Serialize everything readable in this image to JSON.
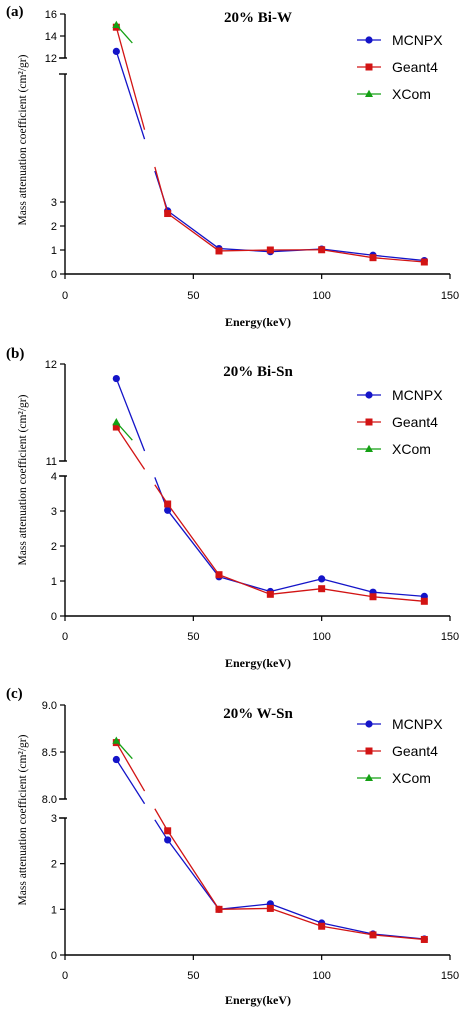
{
  "chart_data": [
    {
      "panel_letter": "(a)",
      "type": "line",
      "title": "20% Bi-W",
      "xlabel": "Energy(keV)",
      "ylabel": "Mass attenuation coefficient (cm²/gr)",
      "xlim": [
        0,
        150
      ],
      "x_ticks": [
        "0",
        "50",
        "100",
        "150"
      ],
      "y_axis_break": true,
      "ylim_lower": [
        0,
        3
      ],
      "ylim_upper": [
        12,
        16
      ],
      "y_ticks_lower": [
        "0",
        "1",
        "2",
        "3"
      ],
      "y_ticks_upper": [
        "12",
        "14",
        "16"
      ],
      "legend_position": "top-right",
      "x": [
        20,
        40,
        60,
        80,
        100,
        120,
        140
      ],
      "series": [
        {
          "name": "MCNPX",
          "color": "#1414c8",
          "marker": "circle",
          "values": [
            12.6,
            2.63,
            1.06,
            0.93,
            1.04,
            0.78,
            0.56
          ]
        },
        {
          "name": "Geant4",
          "color": "#d21414",
          "marker": "square",
          "values": [
            14.8,
            2.52,
            0.96,
            1.0,
            1.01,
            0.68,
            0.5
          ]
        },
        {
          "name": "XCom",
          "color": "#14a014",
          "marker": "triangle",
          "values": [
            15.0,
            null,
            null,
            null,
            null,
            null,
            null
          ]
        }
      ]
    },
    {
      "panel_letter": "(b)",
      "type": "line",
      "title": "20% Bi-Sn",
      "xlabel": "Energy(keV)",
      "ylabel": "Mass attenuation coefficient (cm²/gr)",
      "xlim": [
        0,
        150
      ],
      "x_ticks": [
        "0",
        "50",
        "100",
        "150"
      ],
      "y_axis_break": true,
      "ylim_lower": [
        0,
        4
      ],
      "ylim_upper": [
        11,
        12
      ],
      "y_ticks_lower": [
        "0",
        "1",
        "2",
        "3",
        "4"
      ],
      "y_ticks_upper": [
        "11",
        "12"
      ],
      "legend_position": "top-right",
      "x": [
        20,
        40,
        60,
        80,
        100,
        120,
        140
      ],
      "series": [
        {
          "name": "MCNPX",
          "color": "#1414c8",
          "marker": "circle",
          "values": [
            11.85,
            3.02,
            1.12,
            0.7,
            1.06,
            0.68,
            0.56
          ]
        },
        {
          "name": "Geant4",
          "color": "#d21414",
          "marker": "square",
          "values": [
            11.35,
            3.2,
            1.18,
            0.62,
            0.78,
            0.55,
            0.42
          ]
        },
        {
          "name": "XCom",
          "color": "#14a014",
          "marker": "triangle",
          "values": [
            11.4,
            null,
            null,
            null,
            null,
            null,
            null
          ]
        }
      ]
    },
    {
      "panel_letter": "(c)",
      "type": "line",
      "title": "20% W-Sn",
      "xlabel": "Energy(keV)",
      "ylabel": "Mass attenuation coefficient (cm²/gr)",
      "xlim": [
        0,
        150
      ],
      "x_ticks": [
        "0",
        "50",
        "100",
        "150"
      ],
      "y_axis_break": true,
      "ylim_lower": [
        0,
        3
      ],
      "ylim_upper": [
        8.0,
        9.0
      ],
      "y_ticks_lower": [
        "0",
        "1",
        "2",
        "3"
      ],
      "y_ticks_upper": [
        "8.0",
        "8.5",
        "9.0"
      ],
      "legend_position": "top-right",
      "x": [
        20,
        40,
        60,
        80,
        100,
        120,
        140
      ],
      "series": [
        {
          "name": "MCNPX",
          "color": "#1414c8",
          "marker": "circle",
          "values": [
            8.42,
            2.52,
            1.0,
            1.12,
            0.7,
            0.46,
            0.35
          ]
        },
        {
          "name": "Geant4",
          "color": "#d21414",
          "marker": "square",
          "values": [
            8.6,
            2.72,
            1.0,
            1.02,
            0.63,
            0.44,
            0.34
          ]
        },
        {
          "name": "XCom",
          "color": "#14a014",
          "marker": "triangle",
          "values": [
            8.62,
            null,
            null,
            null,
            null,
            null,
            null
          ]
        }
      ]
    }
  ]
}
